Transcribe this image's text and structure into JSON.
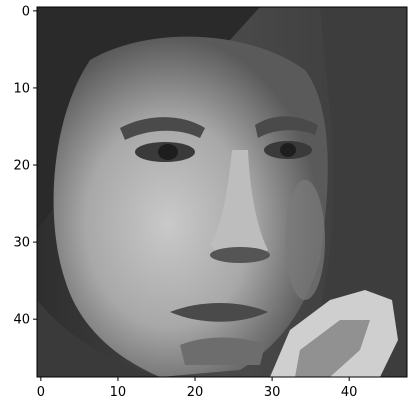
{
  "chart_data": {
    "type": "heatmap",
    "colormap": "gray",
    "grid": false,
    "x_ticks": [
      0,
      10,
      20,
      30,
      40
    ],
    "y_ticks": [
      0,
      10,
      20,
      30,
      40
    ],
    "xlim": [
      -0.5,
      47.5
    ],
    "ylim": [
      47.5,
      -0.5
    ],
    "image_size": [
      48,
      48
    ]
  }
}
